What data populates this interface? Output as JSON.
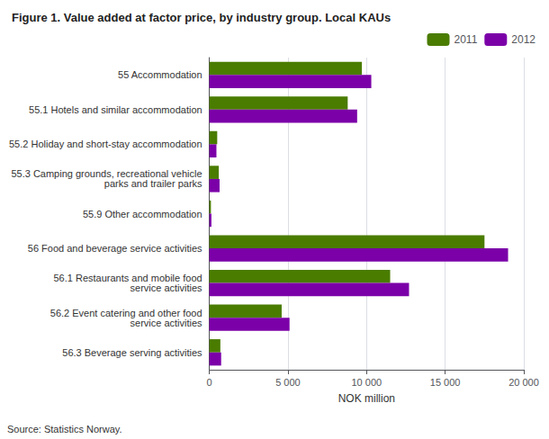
{
  "chart_data": {
    "type": "bar",
    "orientation": "horizontal",
    "title": "Figure 1. Value added at factor price, by industry group. Local KAUs",
    "categories": [
      "55 Accommodation",
      "55.1 Hotels and similar accommodation",
      "55.2 Holiday and short-stay accommodation",
      "55.3 Camping grounds, recreational vehicle\nparks and trailer parks",
      "55.9 Other accommodation",
      "56 Food and beverage service activities",
      "56.1 Restaurants and mobile food\nservice activities",
      "56.2 Event catering and other food\nservice activities",
      "56.3 Beverage serving activities"
    ],
    "series": [
      {
        "name": "2011",
        "color": "#4a7c00",
        "values": [
          9700,
          8800,
          500,
          600,
          100,
          17500,
          11500,
          4600,
          700
        ]
      },
      {
        "name": "2012",
        "color": "#7b00a8",
        "values": [
          10300,
          9400,
          450,
          650,
          130,
          19000,
          12700,
          5100,
          750
        ]
      }
    ],
    "xlabel": "NOK million",
    "xlim": [
      0,
      20000
    ],
    "xticks": [
      0,
      {
        "value": 5000,
        "label": "5 000"
      },
      {
        "value": 10000,
        "label": "10 000"
      },
      {
        "value": 15000,
        "label": "15 000"
      },
      {
        "value": 20000,
        "label": "20 000"
      }
    ],
    "grid": true,
    "legend": "upper right",
    "annotations": [
      "Source: Statistics Norway."
    ]
  }
}
